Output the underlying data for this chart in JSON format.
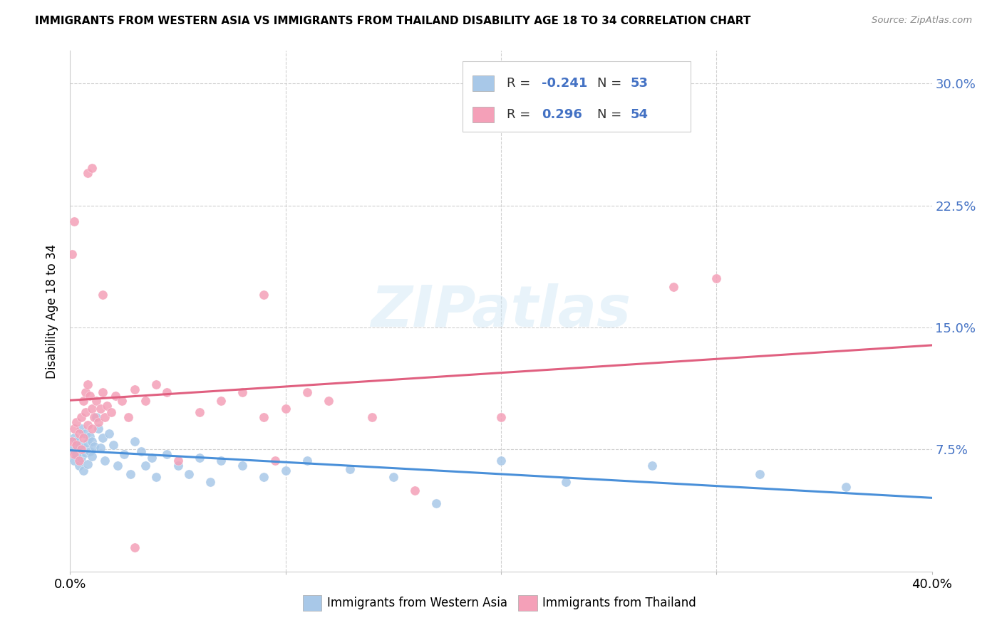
{
  "title": "IMMIGRANTS FROM WESTERN ASIA VS IMMIGRANTS FROM THAILAND DISABILITY AGE 18 TO 34 CORRELATION CHART",
  "source": "Source: ZipAtlas.com",
  "ylabel": "Disability Age 18 to 34",
  "ytick_labels": [
    "7.5%",
    "15.0%",
    "22.5%",
    "30.0%"
  ],
  "ytick_values": [
    0.075,
    0.15,
    0.225,
    0.3
  ],
  "xlim": [
    0.0,
    0.4
  ],
  "ylim": [
    0.0,
    0.32
  ],
  "color_blue": "#a8c8e8",
  "color_pink": "#f4a0b8",
  "color_trend_blue": "#4a90d9",
  "color_trend_pink": "#e06080",
  "color_grid": "#d0d0d0",
  "color_ytick": "#4472c4",
  "wa_x": [
    0.001,
    0.002,
    0.002,
    0.003,
    0.003,
    0.004,
    0.004,
    0.005,
    0.005,
    0.006,
    0.006,
    0.007,
    0.007,
    0.008,
    0.008,
    0.009,
    0.009,
    0.01,
    0.01,
    0.011,
    0.012,
    0.013,
    0.014,
    0.015,
    0.016,
    0.018,
    0.02,
    0.022,
    0.025,
    0.028,
    0.03,
    0.033,
    0.035,
    0.038,
    0.04,
    0.045,
    0.05,
    0.055,
    0.06,
    0.065,
    0.07,
    0.08,
    0.09,
    0.1,
    0.11,
    0.13,
    0.15,
    0.17,
    0.2,
    0.23,
    0.27,
    0.32,
    0.36
  ],
  "wa_y": [
    0.075,
    0.082,
    0.068,
    0.08,
    0.072,
    0.078,
    0.065,
    0.088,
    0.07,
    0.076,
    0.062,
    0.085,
    0.073,
    0.079,
    0.066,
    0.083,
    0.074,
    0.08,
    0.071,
    0.077,
    0.095,
    0.088,
    0.076,
    0.082,
    0.068,
    0.085,
    0.078,
    0.065,
    0.072,
    0.06,
    0.08,
    0.074,
    0.065,
    0.07,
    0.058,
    0.072,
    0.065,
    0.06,
    0.07,
    0.055,
    0.068,
    0.065,
    0.058,
    0.062,
    0.068,
    0.063,
    0.058,
    0.042,
    0.068,
    0.055,
    0.065,
    0.06,
    0.052
  ],
  "th_x": [
    0.001,
    0.002,
    0.002,
    0.003,
    0.003,
    0.004,
    0.004,
    0.005,
    0.005,
    0.006,
    0.006,
    0.007,
    0.007,
    0.008,
    0.008,
    0.009,
    0.01,
    0.01,
    0.011,
    0.012,
    0.013,
    0.014,
    0.015,
    0.016,
    0.017,
    0.019,
    0.021,
    0.024,
    0.027,
    0.03,
    0.035,
    0.04,
    0.045,
    0.05,
    0.06,
    0.07,
    0.08,
    0.09,
    0.095,
    0.1,
    0.11,
    0.12,
    0.14,
    0.16,
    0.2,
    0.28,
    0.3,
    0.001,
    0.002,
    0.008,
    0.01,
    0.015,
    0.03,
    0.09
  ],
  "th_y": [
    0.08,
    0.088,
    0.072,
    0.092,
    0.078,
    0.085,
    0.068,
    0.095,
    0.075,
    0.105,
    0.082,
    0.11,
    0.098,
    0.115,
    0.09,
    0.108,
    0.1,
    0.088,
    0.095,
    0.105,
    0.092,
    0.1,
    0.11,
    0.095,
    0.102,
    0.098,
    0.108,
    0.105,
    0.095,
    0.112,
    0.105,
    0.115,
    0.11,
    0.068,
    0.098,
    0.105,
    0.11,
    0.095,
    0.068,
    0.1,
    0.11,
    0.105,
    0.095,
    0.05,
    0.095,
    0.175,
    0.18,
    0.195,
    0.215,
    0.245,
    0.248,
    0.17,
    0.015,
    0.17
  ]
}
